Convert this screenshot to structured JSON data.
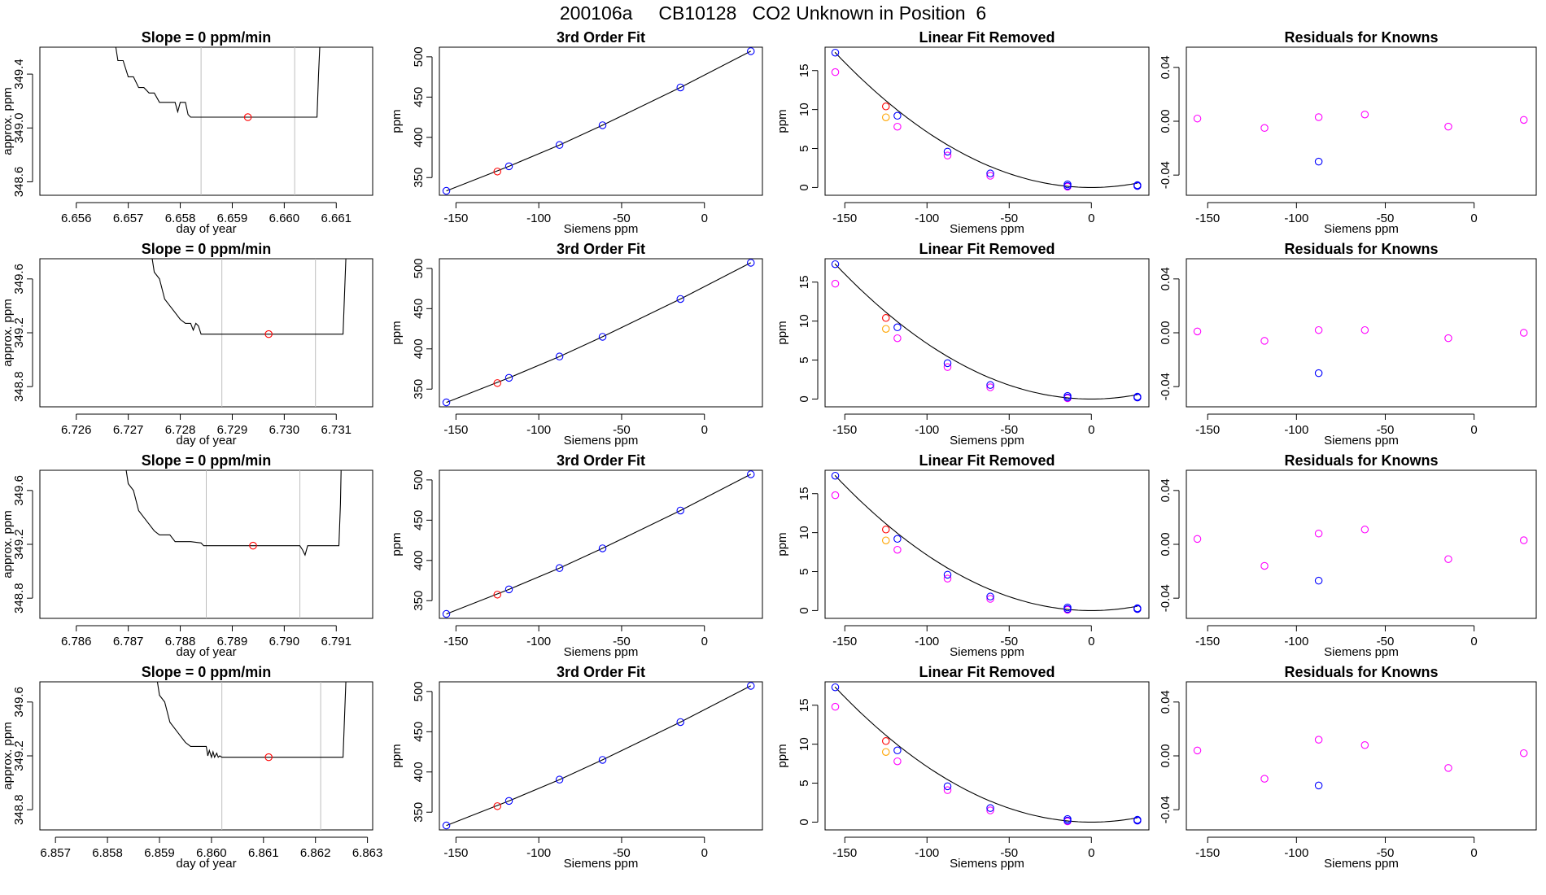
{
  "title": "200106a     CB10128   CO2 Unknown in Position  6",
  "colors": {
    "known": "#0000ff",
    "measured": "#ff00ff",
    "unknown": "#ff0000",
    "unknown_removed": "#ffa500",
    "line": "#000000",
    "vline": "#bebebe"
  },
  "chart_data": [
    {
      "type": "line",
      "row": 0,
      "panel": "slope",
      "title": "Slope =  0  ppm/min",
      "xlabel": "day of year",
      "ylabel": "approx. ppm",
      "xlim": [
        6.6553,
        6.6617
      ],
      "ylim": [
        348.5,
        349.6
      ],
      "xticks": [
        6.656,
        6.657,
        6.658,
        6.659,
        6.66,
        6.661
      ],
      "xtick_labels": [
        "6.656",
        "6.657",
        "6.658",
        "6.659",
        "6.660",
        "6.661"
      ],
      "yticks": [
        348.6,
        349.0,
        349.4
      ],
      "ytick_labels": [
        "348.6",
        "349.0",
        "349.4"
      ],
      "vlines": [
        6.6584,
        6.6602
      ],
      "marker": [
        6.6593,
        349.08
      ],
      "x": [
        6.6567,
        6.6568,
        6.6569,
        6.657,
        6.6571,
        6.6572,
        6.6573,
        6.6574,
        6.6575,
        6.6576,
        6.6578,
        6.6579,
        6.65795,
        6.658,
        6.6581,
        6.65815,
        6.6582,
        6.6583,
        6.659,
        6.66,
        6.6605,
        6.66063,
        6.66066,
        6.6607
      ],
      "y": [
        349.75,
        349.5,
        349.5,
        349.38,
        349.38,
        349.3,
        349.3,
        349.26,
        349.26,
        349.19,
        349.19,
        349.19,
        349.12,
        349.19,
        349.19,
        349.1,
        349.08,
        349.08,
        349.08,
        349.08,
        349.08,
        349.08,
        349.4,
        349.75
      ]
    },
    {
      "type": "line",
      "row": 0,
      "panel": "fit",
      "title": "3rd Order Fit",
      "xlabel": "Siemens ppm",
      "ylabel": "ppm",
      "xlim": [
        -160,
        35
      ],
      "ylim": [
        328,
        512
      ],
      "xticks": [
        -150,
        -100,
        -50,
        0
      ],
      "xtick_labels": [
        "-150",
        "-100",
        "-50",
        "0"
      ],
      "yticks": [
        350,
        400,
        450,
        500
      ],
      "ytick_labels": [
        "350",
        "400",
        "450",
        "500"
      ],
      "known_x": [
        -155.8,
        -118,
        -87.5,
        -61.5,
        -14.5,
        28
      ],
      "known_y": [
        333.5,
        364,
        390.5,
        415,
        462,
        507
      ],
      "unknown_x": [
        -125
      ],
      "unknown_y": [
        357.5
      ]
    },
    {
      "type": "line",
      "row": 0,
      "panel": "linear_removed",
      "title": "Linear Fit Removed",
      "xlabel": "Siemens ppm",
      "ylabel": "ppm",
      "xlim": [
        -162,
        35
      ],
      "ylim": [
        -1,
        18
      ],
      "xticks": [
        -150,
        -100,
        -50,
        0
      ],
      "xtick_labels": [
        "-150",
        "-100",
        "-50",
        "0"
      ],
      "yticks": [
        0,
        5,
        10,
        15
      ],
      "ytick_labels": [
        "0",
        "5",
        "10",
        "15"
      ],
      "known_x": [
        -155.8,
        -118,
        -87.5,
        -61.5,
        -14.5,
        -14.5,
        28,
        28
      ],
      "known_y": [
        17.3,
        9.2,
        4.6,
        1.8,
        0.4,
        0.2,
        0.3,
        0.2
      ],
      "measured_x": [
        -155.8,
        -118,
        -87.5,
        -61.5,
        -14.5,
        28
      ],
      "measured_y": [
        14.8,
        7.8,
        4.1,
        1.5,
        0.1,
        0.2
      ],
      "unknown_x": [
        -125
      ],
      "unknown_y": [
        10.4
      ],
      "unknown_removed_x": [
        -125
      ],
      "unknown_removed_y": [
        9.0
      ]
    },
    {
      "type": "scatter",
      "row": 0,
      "panel": "residuals",
      "title": "Residuals for Knowns",
      "xlabel": "Siemens ppm",
      "ylabel": "",
      "xlim": [
        -162,
        35
      ],
      "ylim": [
        -0.055,
        0.055
      ],
      "xticks": [
        -150,
        -100,
        -50,
        0
      ],
      "xtick_labels": [
        "-150",
        "-100",
        "-50",
        "0"
      ],
      "yticks": [
        -0.04,
        0.0,
        0.04
      ],
      "ytick_labels": [
        "-0.04",
        "0.00",
        "0.04"
      ],
      "x": [
        -155.8,
        -118,
        -87.5,
        -87.5,
        -61.5,
        -14.5,
        28
      ],
      "y": [
        0.002,
        -0.005,
        0.003,
        -0.03,
        0.005,
        -0.004,
        0.001
      ],
      "point_colors": [
        "measured",
        "measured",
        "measured",
        "known",
        "measured",
        "measured",
        "measured"
      ]
    },
    {
      "type": "line",
      "row": 1,
      "panel": "slope",
      "title": "Slope =  0  ppm/min",
      "xlabel": "day of year",
      "ylabel": "approx. ppm",
      "xlim": [
        6.7253,
        6.7317
      ],
      "ylim": [
        348.65,
        349.75
      ],
      "xticks": [
        6.726,
        6.727,
        6.728,
        6.729,
        6.73,
        6.731
      ],
      "xtick_labels": [
        "6.726",
        "6.727",
        "6.728",
        "6.729",
        "6.730",
        "6.731"
      ],
      "yticks": [
        348.8,
        349.2,
        349.6
      ],
      "ytick_labels": [
        "348.8",
        "349.2",
        "349.6"
      ],
      "vlines": [
        6.7288,
        6.7306
      ],
      "marker": [
        6.7297,
        349.19
      ],
      "x": [
        6.7274,
        6.7275,
        6.7276,
        6.7277,
        6.7278,
        6.7279,
        6.728,
        6.7281,
        6.7282,
        6.72825,
        6.7283,
        6.72835,
        6.7284,
        6.7288,
        6.7295,
        6.7305,
        6.7311,
        6.73113,
        6.73116,
        6.7312
      ],
      "y": [
        349.9,
        349.65,
        349.6,
        349.45,
        349.4,
        349.35,
        349.3,
        349.27,
        349.27,
        349.22,
        349.27,
        349.25,
        349.19,
        349.19,
        349.19,
        349.19,
        349.19,
        349.19,
        349.5,
        349.9
      ]
    },
    {
      "type": "line",
      "row": 1,
      "panel": "fit",
      "title": "3rd Order Fit",
      "xlabel": "Siemens ppm",
      "ylabel": "ppm",
      "xlim": [
        -160,
        35
      ],
      "ylim": [
        328,
        512
      ],
      "xticks": [
        -150,
        -100,
        -50,
        0
      ],
      "xtick_labels": [
        "-150",
        "-100",
        "-50",
        "0"
      ],
      "yticks": [
        350,
        400,
        450,
        500
      ],
      "ytick_labels": [
        "350",
        "400",
        "450",
        "500"
      ],
      "known_x": [
        -155.8,
        -118,
        -87.5,
        -61.5,
        -14.5,
        28
      ],
      "known_y": [
        333.5,
        364,
        390.5,
        415,
        462,
        507
      ],
      "unknown_x": [
        -125
      ],
      "unknown_y": [
        357.5
      ]
    },
    {
      "type": "line",
      "row": 1,
      "panel": "linear_removed",
      "title": "Linear Fit Removed",
      "xlabel": "Siemens ppm",
      "ylabel": "ppm",
      "xlim": [
        -162,
        35
      ],
      "ylim": [
        -1,
        18
      ],
      "xticks": [
        -150,
        -100,
        -50,
        0
      ],
      "xtick_labels": [
        "-150",
        "-100",
        "-50",
        "0"
      ],
      "yticks": [
        0,
        5,
        10,
        15
      ],
      "ytick_labels": [
        "0",
        "5",
        "10",
        "15"
      ],
      "known_x": [
        -155.8,
        -118,
        -87.5,
        -61.5,
        -14.5,
        -14.5,
        28,
        28
      ],
      "known_y": [
        17.3,
        9.2,
        4.6,
        1.8,
        0.4,
        0.2,
        0.3,
        0.2
      ],
      "measured_x": [
        -155.8,
        -118,
        -87.5,
        -61.5,
        -14.5,
        28
      ],
      "measured_y": [
        14.8,
        7.8,
        4.1,
        1.5,
        0.1,
        0.2
      ],
      "unknown_x": [
        -125
      ],
      "unknown_y": [
        10.4
      ],
      "unknown_removed_x": [
        -125
      ],
      "unknown_removed_y": [
        9.0
      ]
    },
    {
      "type": "scatter",
      "row": 1,
      "panel": "residuals",
      "title": "Residuals for Knowns",
      "xlabel": "Siemens ppm",
      "ylabel": "",
      "xlim": [
        -162,
        35
      ],
      "ylim": [
        -0.055,
        0.055
      ],
      "xticks": [
        -150,
        -100,
        -50,
        0
      ],
      "xtick_labels": [
        "-150",
        "-100",
        "-50",
        "0"
      ],
      "yticks": [
        -0.04,
        0.0,
        0.04
      ],
      "ytick_labels": [
        "-0.04",
        "0.00",
        "0.04"
      ],
      "x": [
        -155.8,
        -118,
        -87.5,
        -87.5,
        -61.5,
        -14.5,
        28
      ],
      "y": [
        0.001,
        -0.006,
        0.002,
        -0.03,
        0.002,
        -0.004,
        0.0
      ],
      "point_colors": [
        "measured",
        "measured",
        "measured",
        "known",
        "measured",
        "measured",
        "measured"
      ]
    },
    {
      "type": "line",
      "row": 2,
      "panel": "slope",
      "title": "Slope =  0  ppm/min",
      "xlabel": "day of year",
      "ylabel": "approx. ppm",
      "xlim": [
        6.7853,
        6.7917
      ],
      "ylim": [
        348.65,
        349.75
      ],
      "xticks": [
        6.786,
        6.787,
        6.788,
        6.789,
        6.79,
        6.791
      ],
      "xtick_labels": [
        "6.786",
        "6.787",
        "6.788",
        "6.789",
        "6.790",
        "6.791"
      ],
      "yticks": [
        348.8,
        349.2,
        349.6
      ],
      "ytick_labels": [
        "348.8",
        "349.2",
        "349.6"
      ],
      "vlines": [
        6.7885,
        6.7903
      ],
      "marker": [
        6.7894,
        349.19
      ],
      "x": [
        6.7869,
        6.787,
        6.7871,
        6.7872,
        6.7873,
        6.7874,
        6.7875,
        6.7876,
        6.7877,
        6.7878,
        6.7879,
        6.788,
        6.7882,
        6.7884,
        6.78845,
        6.7885,
        6.789,
        6.79,
        6.7903,
        6.79035,
        6.7904,
        6.79045,
        6.7905,
        6.791,
        6.79105,
        6.79108,
        6.7911
      ],
      "y": [
        349.9,
        349.65,
        349.6,
        349.45,
        349.4,
        349.35,
        349.3,
        349.27,
        349.27,
        349.27,
        349.22,
        349.22,
        349.22,
        349.21,
        349.19,
        349.19,
        349.19,
        349.19,
        349.19,
        349.16,
        349.12,
        349.19,
        349.19,
        349.19,
        349.19,
        349.5,
        349.9
      ]
    },
    {
      "type": "line",
      "row": 2,
      "panel": "fit",
      "title": "3rd Order Fit",
      "xlabel": "Siemens ppm",
      "ylabel": "ppm",
      "xlim": [
        -160,
        35
      ],
      "ylim": [
        328,
        512
      ],
      "xticks": [
        -150,
        -100,
        -50,
        0
      ],
      "xtick_labels": [
        "-150",
        "-100",
        "-50",
        "0"
      ],
      "yticks": [
        350,
        400,
        450,
        500
      ],
      "ytick_labels": [
        "350",
        "400",
        "450",
        "500"
      ],
      "known_x": [
        -155.8,
        -118,
        -87.5,
        -61.5,
        -14.5,
        28
      ],
      "known_y": [
        333.5,
        364,
        390.5,
        415,
        462,
        507
      ],
      "unknown_x": [
        -125
      ],
      "unknown_y": [
        357.5
      ]
    },
    {
      "type": "line",
      "row": 2,
      "panel": "linear_removed",
      "title": "Linear Fit Removed",
      "xlabel": "Siemens ppm",
      "ylabel": "ppm",
      "xlim": [
        -162,
        35
      ],
      "ylim": [
        -1,
        18
      ],
      "xticks": [
        -150,
        -100,
        -50,
        0
      ],
      "xtick_labels": [
        "-150",
        "-100",
        "-50",
        "0"
      ],
      "yticks": [
        0,
        5,
        10,
        15
      ],
      "ytick_labels": [
        "0",
        "5",
        "10",
        "15"
      ],
      "known_x": [
        -155.8,
        -118,
        -87.5,
        -61.5,
        -14.5,
        -14.5,
        28,
        28
      ],
      "known_y": [
        17.3,
        9.2,
        4.6,
        1.8,
        0.4,
        0.2,
        0.3,
        0.2
      ],
      "measured_x": [
        -155.8,
        -118,
        -87.5,
        -61.5,
        -14.5,
        28
      ],
      "measured_y": [
        14.8,
        7.8,
        4.1,
        1.5,
        0.1,
        0.2
      ],
      "unknown_x": [
        -125
      ],
      "unknown_y": [
        10.4
      ],
      "unknown_removed_x": [
        -125
      ],
      "unknown_removed_y": [
        9.0
      ]
    },
    {
      "type": "scatter",
      "row": 2,
      "panel": "residuals",
      "title": "Residuals for Knowns",
      "xlabel": "Siemens ppm",
      "ylabel": "",
      "xlim": [
        -162,
        35
      ],
      "ylim": [
        -0.055,
        0.055
      ],
      "xticks": [
        -150,
        -100,
        -50,
        0
      ],
      "xtick_labels": [
        "-150",
        "-100",
        "-50",
        "0"
      ],
      "yticks": [
        -0.04,
        0.0,
        0.04
      ],
      "ytick_labels": [
        "-0.04",
        "0.00",
        "0.04"
      ],
      "x": [
        -155.8,
        -118,
        -87.5,
        -87.5,
        -61.5,
        -14.5,
        28
      ],
      "y": [
        0.004,
        -0.016,
        0.008,
        -0.027,
        0.011,
        -0.011,
        0.003
      ],
      "point_colors": [
        "measured",
        "measured",
        "measured",
        "known",
        "measured",
        "measured",
        "measured"
      ]
    },
    {
      "type": "line",
      "row": 3,
      "panel": "slope",
      "title": "Slope =  0  ppm/min",
      "xlabel": "day of year",
      "ylabel": "approx. ppm",
      "xlim": [
        6.8567,
        6.8631
      ],
      "ylim": [
        348.65,
        349.75
      ],
      "xticks": [
        6.857,
        6.858,
        6.859,
        6.86,
        6.861,
        6.862,
        6.863
      ],
      "xtick_labels": [
        "6.857",
        "6.858",
        "6.859",
        "6.860",
        "6.861",
        "6.862",
        "6.863"
      ],
      "yticks": [
        348.8,
        349.2,
        349.6
      ],
      "ytick_labels": [
        "348.8",
        "349.2",
        "349.6"
      ],
      "vlines": [
        6.8602,
        6.8621
      ],
      "marker": [
        6.8611,
        349.19
      ],
      "x": [
        6.8589,
        6.859,
        6.8591,
        6.8592,
        6.8593,
        6.8594,
        6.8595,
        6.8596,
        6.8597,
        6.8598,
        6.8599,
        6.85993,
        6.85996,
        6.86,
        6.86003,
        6.86006,
        6.8601,
        6.86013,
        6.86016,
        6.8602,
        6.861,
        6.862,
        6.8625,
        6.86253,
        6.86256,
        6.8626
      ],
      "y": [
        349.9,
        349.65,
        349.6,
        349.45,
        349.4,
        349.35,
        349.3,
        349.27,
        349.27,
        349.27,
        349.27,
        349.2,
        349.24,
        349.19,
        349.23,
        349.19,
        349.22,
        349.19,
        349.2,
        349.19,
        349.19,
        349.19,
        349.19,
        349.19,
        349.5,
        349.9
      ]
    },
    {
      "type": "line",
      "row": 3,
      "panel": "fit",
      "title": "3rd Order Fit",
      "xlabel": "Siemens ppm",
      "ylabel": "ppm",
      "xlim": [
        -160,
        35
      ],
      "ylim": [
        328,
        512
      ],
      "xticks": [
        -150,
        -100,
        -50,
        0
      ],
      "xtick_labels": [
        "-150",
        "-100",
        "-50",
        "0"
      ],
      "yticks": [
        350,
        400,
        450,
        500
      ],
      "ytick_labels": [
        "350",
        "400",
        "450",
        "500"
      ],
      "known_x": [
        -155.8,
        -118,
        -87.5,
        -61.5,
        -14.5,
        28
      ],
      "known_y": [
        333.5,
        364,
        390.5,
        415,
        462,
        507
      ],
      "unknown_x": [
        -125
      ],
      "unknown_y": [
        357.5
      ]
    },
    {
      "type": "line",
      "row": 3,
      "panel": "linear_removed",
      "title": "Linear Fit Removed",
      "xlabel": "Siemens ppm",
      "ylabel": "ppm",
      "xlim": [
        -162,
        35
      ],
      "ylim": [
        -1,
        18
      ],
      "xticks": [
        -150,
        -100,
        -50,
        0
      ],
      "xtick_labels": [
        "-150",
        "-100",
        "-50",
        "0"
      ],
      "yticks": [
        0,
        5,
        10,
        15
      ],
      "ytick_labels": [
        "0",
        "5",
        "10",
        "15"
      ],
      "known_x": [
        -155.8,
        -118,
        -87.5,
        -61.5,
        -14.5,
        -14.5,
        28,
        28
      ],
      "known_y": [
        17.3,
        9.2,
        4.6,
        1.8,
        0.4,
        0.2,
        0.3,
        0.2
      ],
      "measured_x": [
        -155.8,
        -118,
        -87.5,
        -61.5,
        -14.5,
        28
      ],
      "measured_y": [
        14.8,
        7.8,
        4.1,
        1.5,
        0.1,
        0.2
      ],
      "unknown_x": [
        -125
      ],
      "unknown_y": [
        10.4
      ],
      "unknown_removed_x": [
        -125
      ],
      "unknown_removed_y": [
        9.0
      ]
    },
    {
      "type": "scatter",
      "row": 3,
      "panel": "residuals",
      "title": "Residuals for Knowns",
      "xlabel": "Siemens ppm",
      "ylabel": "",
      "xlim": [
        -162,
        35
      ],
      "ylim": [
        -0.055,
        0.055
      ],
      "xticks": [
        -150,
        -100,
        -50,
        0
      ],
      "xtick_labels": [
        "-150",
        "-100",
        "-50",
        "0"
      ],
      "yticks": [
        -0.04,
        0.0,
        0.04
      ],
      "ytick_labels": [
        "-0.04",
        "0.00",
        "0.04"
      ],
      "x": [
        -155.8,
        -118,
        -87.5,
        -87.5,
        -61.5,
        -14.5,
        28
      ],
      "y": [
        0.004,
        -0.017,
        0.012,
        -0.022,
        0.008,
        -0.009,
        0.002
      ],
      "point_colors": [
        "measured",
        "measured",
        "measured",
        "known",
        "measured",
        "measured",
        "measured"
      ]
    }
  ]
}
